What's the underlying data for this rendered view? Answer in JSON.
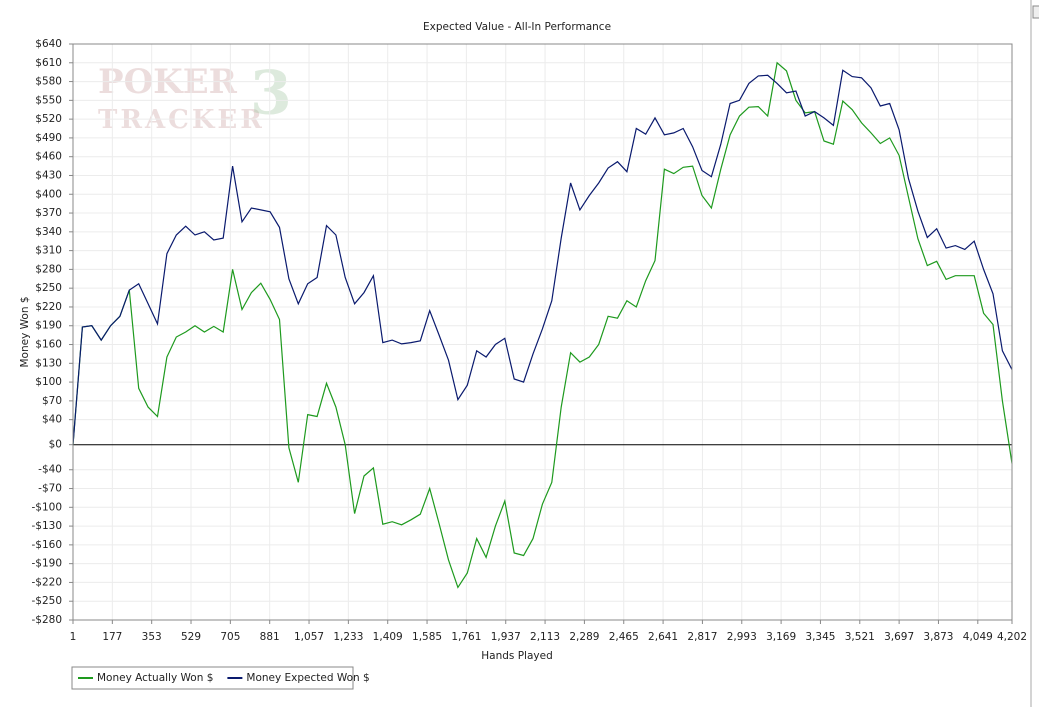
{
  "chart_data": {
    "type": "line",
    "title": "Expected Value - All-In Performance",
    "xlabel": "Hands Played",
    "ylabel": "Money Won $",
    "watermark": [
      "POKER",
      "TRACKER",
      "3"
    ],
    "x": [
      1,
      43,
      85,
      127,
      169,
      211,
      253,
      295,
      337,
      379,
      421,
      463,
      505,
      547,
      589,
      631,
      673,
      715,
      757,
      799,
      841,
      883,
      925,
      967,
      1009,
      1051,
      1093,
      1135,
      1177,
      1219,
      1261,
      1303,
      1345,
      1387,
      1429,
      1471,
      1513,
      1555,
      1597,
      1639,
      1681,
      1723,
      1765,
      1807,
      1849,
      1891,
      1933,
      1975,
      2017,
      2059,
      2101,
      2143,
      2185,
      2227,
      2269,
      2311,
      2353,
      2395,
      2437,
      2479,
      2521,
      2563,
      2605,
      2647,
      2689,
      2731,
      2773,
      2815,
      2857,
      2899,
      2941,
      2983,
      3025,
      3067,
      3109,
      3151,
      3193,
      3235,
      3277,
      3319,
      3361,
      3403,
      3445,
      3487,
      3529,
      3571,
      3613,
      3655,
      3697,
      3739,
      3781,
      3823,
      3865,
      3907,
      3949,
      3991,
      4033,
      4075,
      4117,
      4159,
      4202
    ],
    "series": [
      {
        "name": "Money Actually Won $",
        "color": "#1e9a1e",
        "values": [
          0,
          188,
          190,
          167,
          190,
          205,
          247,
          90,
          60,
          45,
          140,
          172,
          180,
          190,
          180,
          189,
          180,
          280,
          216,
          243,
          258,
          232,
          200,
          -5,
          -60,
          48,
          45,
          98,
          60,
          0,
          -110,
          -50,
          -37,
          -127,
          -123,
          -128,
          -120,
          -111,
          -70,
          -126,
          -184,
          -228,
          -205,
          -150,
          -180,
          -130,
          -90,
          -173,
          -177,
          -150,
          -95,
          -60,
          60,
          147,
          132,
          140,
          160,
          205,
          202,
          230,
          220,
          262,
          294,
          440,
          433,
          443,
          445,
          398,
          378,
          440,
          495,
          525,
          539,
          540,
          525,
          610,
          597,
          550,
          530,
          532,
          485,
          480,
          549,
          535,
          514,
          498,
          481,
          490,
          462,
          395,
          329,
          286,
          293,
          264,
          270,
          270,
          270,
          210,
          192,
          70,
          -30
        ]
      },
      {
        "name": "Money Expected Won $",
        "color": "#0a1a6e",
        "values": [
          0,
          188,
          190,
          167,
          190,
          205,
          247,
          257,
          225,
          193,
          305,
          335,
          349,
          335,
          340,
          327,
          330,
          445,
          356,
          378,
          375,
          372,
          347,
          265,
          225,
          257,
          267,
          350,
          335,
          267,
          225,
          243,
          270,
          163,
          167,
          161,
          163,
          166,
          214,
          175,
          135,
          72,
          95,
          150,
          140,
          160,
          170,
          105,
          100,
          145,
          185,
          230,
          330,
          418,
          375,
          398,
          418,
          442,
          452,
          436,
          505,
          496,
          522,
          495,
          498,
          505,
          476,
          438,
          428,
          480,
          545,
          550,
          577,
          589,
          590,
          577,
          562,
          565,
          525,
          532,
          522,
          510,
          598,
          588,
          586,
          570,
          541,
          545,
          503,
          425,
          373,
          331,
          345,
          314,
          318,
          312,
          325,
          280,
          241,
          150,
          120
        ]
      }
    ],
    "xlim": [
      1,
      4202
    ],
    "xticks": [
      1,
      177,
      353,
      529,
      705,
      881,
      {
        "value": 1057,
        "label": "1,057"
      },
      {
        "value": 1233,
        "label": "1,233"
      },
      {
        "value": 1409,
        "label": "1,409"
      },
      {
        "value": 1585,
        "label": "1,585"
      },
      {
        "value": 1761,
        "label": "1,761"
      },
      {
        "value": 1937,
        "label": "1,937"
      },
      {
        "value": 2113,
        "label": "2,113"
      },
      {
        "value": 2289,
        "label": "2,289"
      },
      {
        "value": 2465,
        "label": "2,465"
      },
      {
        "value": 2641,
        "label": "2,641"
      },
      {
        "value": 2817,
        "label": "2,817"
      },
      {
        "value": 2993,
        "label": "2,993"
      },
      {
        "value": 3169,
        "label": "3,169"
      },
      {
        "value": 3345,
        "label": "3,345"
      },
      {
        "value": 3521,
        "label": "3,521"
      },
      {
        "value": 3697,
        "label": "3,697"
      },
      {
        "value": 3873,
        "label": "3,873"
      },
      {
        "value": 4049,
        "label": "4,049"
      },
      {
        "value": 4202,
        "label": "4,202"
      }
    ],
    "ylim": [
      -280,
      640
    ],
    "yticks": [
      {
        "value": 640,
        "label": "$640"
      },
      {
        "value": 610,
        "label": "$610"
      },
      {
        "value": 580,
        "label": "$580"
      },
      {
        "value": 550,
        "label": "$550"
      },
      {
        "value": 520,
        "label": "$520"
      },
      {
        "value": 490,
        "label": "$490"
      },
      {
        "value": 460,
        "label": "$460"
      },
      {
        "value": 430,
        "label": "$430"
      },
      {
        "value": 400,
        "label": "$400"
      },
      {
        "value": 370,
        "label": "$370"
      },
      {
        "value": 340,
        "label": "$340"
      },
      {
        "value": 310,
        "label": "$310"
      },
      {
        "value": 280,
        "label": "$280"
      },
      {
        "value": 250,
        "label": "$250"
      },
      {
        "value": 220,
        "label": "$220"
      },
      {
        "value": 190,
        "label": "$190"
      },
      {
        "value": 160,
        "label": "$160"
      },
      {
        "value": 130,
        "label": "$130"
      },
      {
        "value": 100,
        "label": "$100"
      },
      {
        "value": 70,
        "label": "$70"
      },
      {
        "value": 40,
        "label": "$40"
      },
      {
        "value": 0,
        "label": "$0"
      },
      {
        "value": -40,
        "label": "-$40"
      },
      {
        "value": -70,
        "label": "-$70"
      },
      {
        "value": -100,
        "label": "-$100"
      },
      {
        "value": -130,
        "label": "-$130"
      },
      {
        "value": -160,
        "label": "-$160"
      },
      {
        "value": -190,
        "label": "-$190"
      },
      {
        "value": -220,
        "label": "-$220"
      },
      {
        "value": -250,
        "label": "-$250"
      },
      {
        "value": -280,
        "label": "-$280"
      }
    ],
    "grid": true,
    "legend": "bottom-left"
  }
}
